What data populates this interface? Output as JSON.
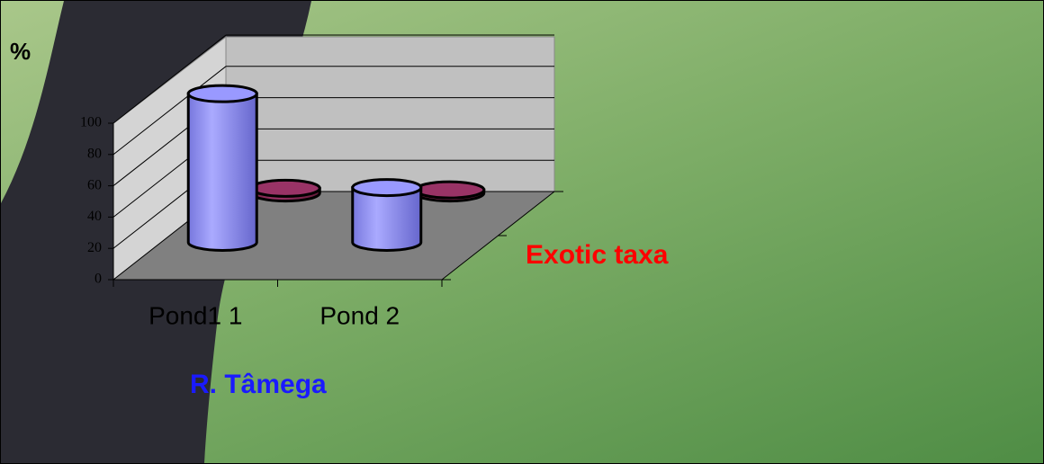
{
  "chart_data": {
    "type": "bar3d",
    "y_label": "%",
    "categories": [
      "Pond1 1",
      "Pond  2"
    ],
    "series": [
      {
        "name": "R. Tâmega",
        "color": "#9999ff",
        "values": [
          95,
          35
        ]
      },
      {
        "name": "Exotic taxa",
        "color": "#993366",
        "values": [
          3,
          2
        ]
      }
    ],
    "ylim": [
      0,
      100
    ],
    "yticks": [
      0,
      20,
      40,
      60,
      80,
      100
    ],
    "grid": true
  }
}
